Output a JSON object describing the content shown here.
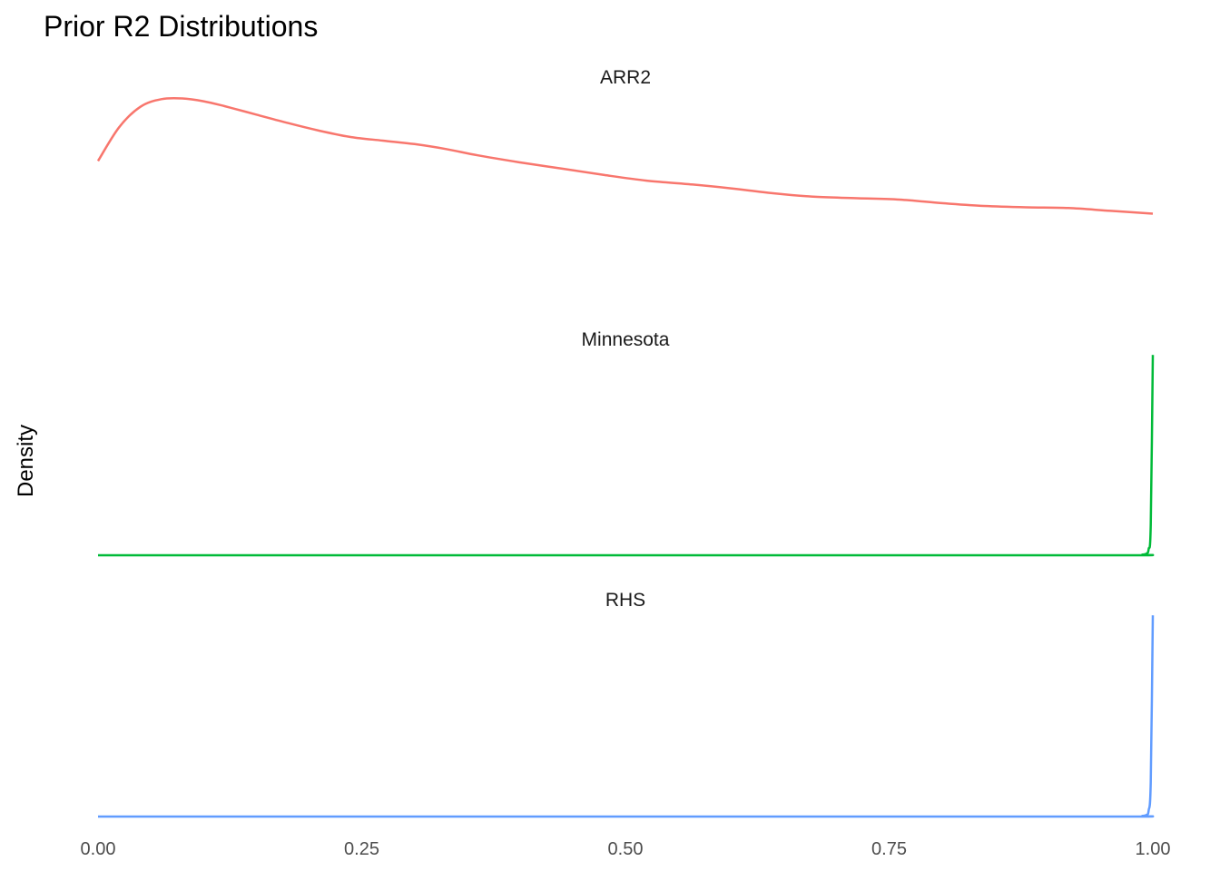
{
  "chart_data": {
    "type": "line",
    "title": "Prior R2 Distributions",
    "xlabel": "",
    "ylabel": "Density",
    "xlim": [
      0,
      1
    ],
    "x_ticks": [
      "0.00",
      "0.25",
      "0.50",
      "0.75",
      "1.00"
    ],
    "grid": false,
    "legend": "none",
    "facets": [
      {
        "label": "ARR2",
        "color": "#F8766D",
        "ylim": [
          0,
          3.1
        ],
        "x": [
          0.0,
          0.02,
          0.04,
          0.06,
          0.08,
          0.1,
          0.12,
          0.15,
          0.18,
          0.21,
          0.24,
          0.27,
          0.3,
          0.33,
          0.36,
          0.4,
          0.44,
          0.48,
          0.52,
          0.56,
          0.6,
          0.64,
          0.68,
          0.72,
          0.76,
          0.8,
          0.84,
          0.88,
          0.92,
          0.96,
          1.0
        ],
        "y": [
          2.1,
          2.58,
          2.87,
          2.98,
          2.99,
          2.95,
          2.88,
          2.76,
          2.64,
          2.53,
          2.44,
          2.39,
          2.34,
          2.27,
          2.18,
          2.08,
          1.99,
          1.9,
          1.82,
          1.77,
          1.71,
          1.64,
          1.59,
          1.57,
          1.55,
          1.5,
          1.46,
          1.44,
          1.43,
          1.39,
          1.35
        ]
      },
      {
        "label": "Minnesota",
        "color": "#00BA38",
        "ylim": [
          0,
          1.0
        ],
        "x": [
          0.0,
          0.25,
          0.5,
          0.75,
          0.98,
          0.99,
          0.994,
          0.996,
          0.998,
          1.0
        ],
        "y": [
          0.0,
          0.0,
          0.0,
          0.0,
          0.0,
          0.003,
          0.008,
          0.03,
          0.15,
          0.99
        ]
      },
      {
        "label": "RHS",
        "color": "#619CFF",
        "ylim": [
          0,
          1.0
        ],
        "x": [
          0.0,
          0.25,
          0.5,
          0.75,
          0.98,
          0.99,
          0.994,
          0.996,
          0.998,
          1.0
        ],
        "y": [
          0.0,
          0.0,
          0.0,
          0.0,
          0.0,
          0.003,
          0.008,
          0.03,
          0.17,
          0.99
        ]
      }
    ]
  }
}
